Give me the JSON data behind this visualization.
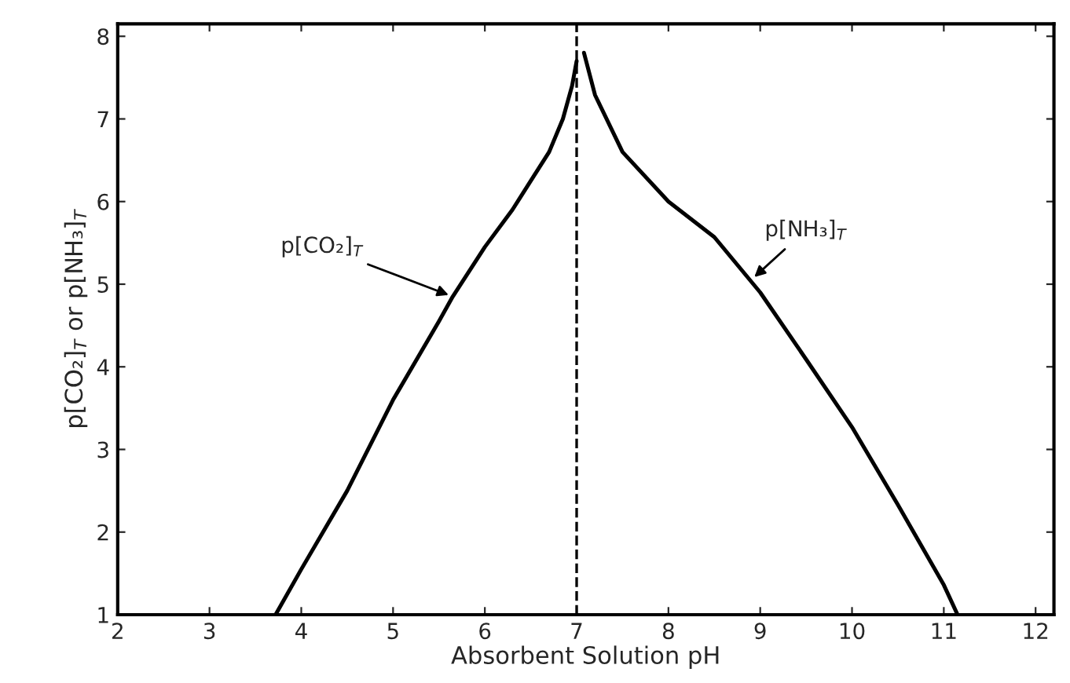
{
  "chart_data": {
    "type": "line",
    "xlabel": "Absorbent Solution pH",
    "ylabel": "p[CO₂]$_{T}$ or p[NH₃]$_{T}$",
    "series": [
      {
        "color": "#000000",
        "x": [
          3.72,
          4.0,
          4.5,
          5.0,
          5.5,
          5.65,
          6.0,
          6.3,
          6.5,
          6.7,
          6.85,
          6.95,
          7.0
        ],
        "values": [
          1.0,
          1.55,
          2.5,
          3.6,
          4.55,
          4.85,
          5.45,
          5.9,
          6.25,
          6.6,
          7.0,
          7.4,
          7.7
        ]
      },
      {
        "color": "#000000",
        "x": [
          7.08,
          7.2,
          7.5,
          8.0,
          8.5,
          9.0,
          9.5,
          10.0,
          10.5,
          11.0,
          11.15
        ],
        "values": [
          7.8,
          7.29,
          6.6,
          6.0,
          5.57,
          4.9,
          4.09,
          3.27,
          2.33,
          1.36,
          1.0
        ]
      }
    ],
    "annotations": [
      {
        "text": "p[CO₂]$_{T}$",
        "x": 5.65,
        "y": 4.85
      },
      {
        "text": "p[NH₃]$_{T}$",
        "x": 8.9,
        "y": 5.05
      }
    ],
    "ref_lines": [
      {
        "axis": "x",
        "value": 7,
        "line_style": "dashed",
        "color": "#000000"
      }
    ],
    "xlim": [
      2,
      12.2
    ],
    "ylim": [
      1,
      8.15
    ],
    "xticks": [
      2,
      3,
      4,
      5,
      6,
      7,
      8,
      9,
      10,
      11,
      12
    ],
    "yticks": [
      1,
      2,
      3,
      4,
      5,
      6,
      7,
      {
        "value": 8,
        "label": "8"
      }
    ],
    "grid": false,
    "marker": "none",
    "line_style": "solid"
  }
}
